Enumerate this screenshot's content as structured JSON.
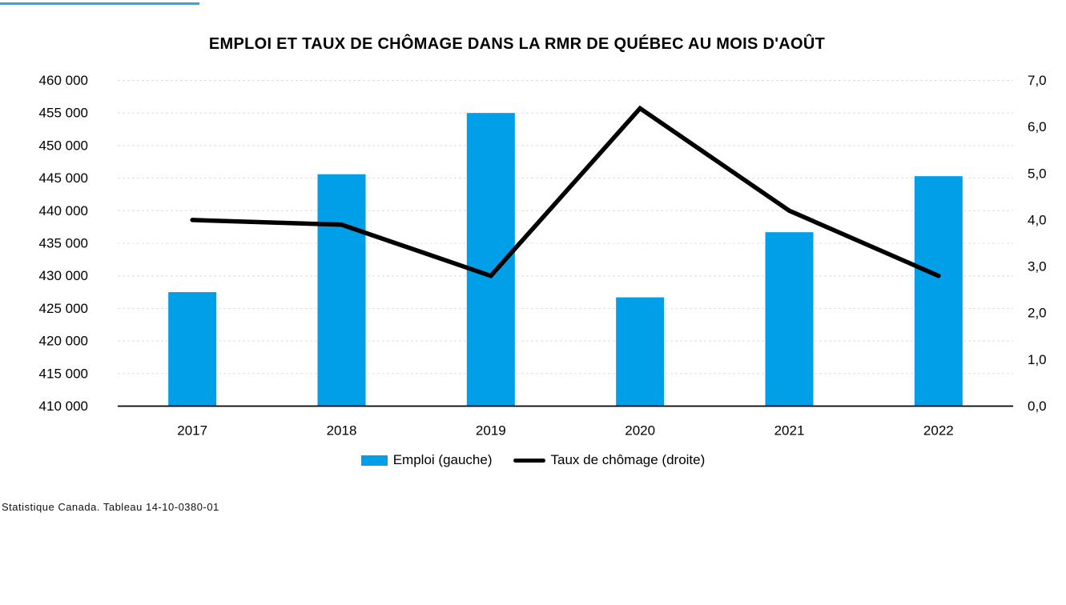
{
  "page": {
    "top_rule_color": "#29ABE2",
    "background": "#FFFFFF"
  },
  "chart_data": {
    "type": "combo-bar-line",
    "title": "EMPLOI ET TAUX DE CHÔMAGE DANS LA RMR DE QUÉBEC AU MOIS D'AOÛT",
    "categories": [
      "2017",
      "2018",
      "2019",
      "2020",
      "2021",
      "2022"
    ],
    "series": [
      {
        "name": "Emploi (gauche)",
        "type": "bar",
        "axis": "left",
        "color": "#009FE8",
        "values": [
          427500,
          445600,
          455000,
          426700,
          436700,
          445300
        ]
      },
      {
        "name": "Taux de chômage (droite)",
        "type": "line",
        "axis": "right",
        "color": "#000000",
        "values": [
          4.0,
          3.9,
          2.8,
          6.4,
          4.2,
          2.8
        ]
      }
    ],
    "left_axis": {
      "min": 410000,
      "max": 460000,
      "step": 5000,
      "tick_labels": [
        "460 000",
        "455 000",
        "450 000",
        "445 000",
        "440 000",
        "435 000",
        "430 000",
        "425 000",
        "420 000",
        "415 000",
        "410 000"
      ]
    },
    "right_axis": {
      "min": 0,
      "max": 7,
      "step": 1,
      "tick_labels": [
        "7,0",
        "6,0",
        "5,0",
        "4,0",
        "3,0",
        "2,0",
        "1,0",
        "0,0"
      ]
    },
    "grid": "horizontal-dashed-light-gray",
    "legend_position": "bottom"
  },
  "source": "Statistique Canada. Tableau 14-10-0380-01"
}
